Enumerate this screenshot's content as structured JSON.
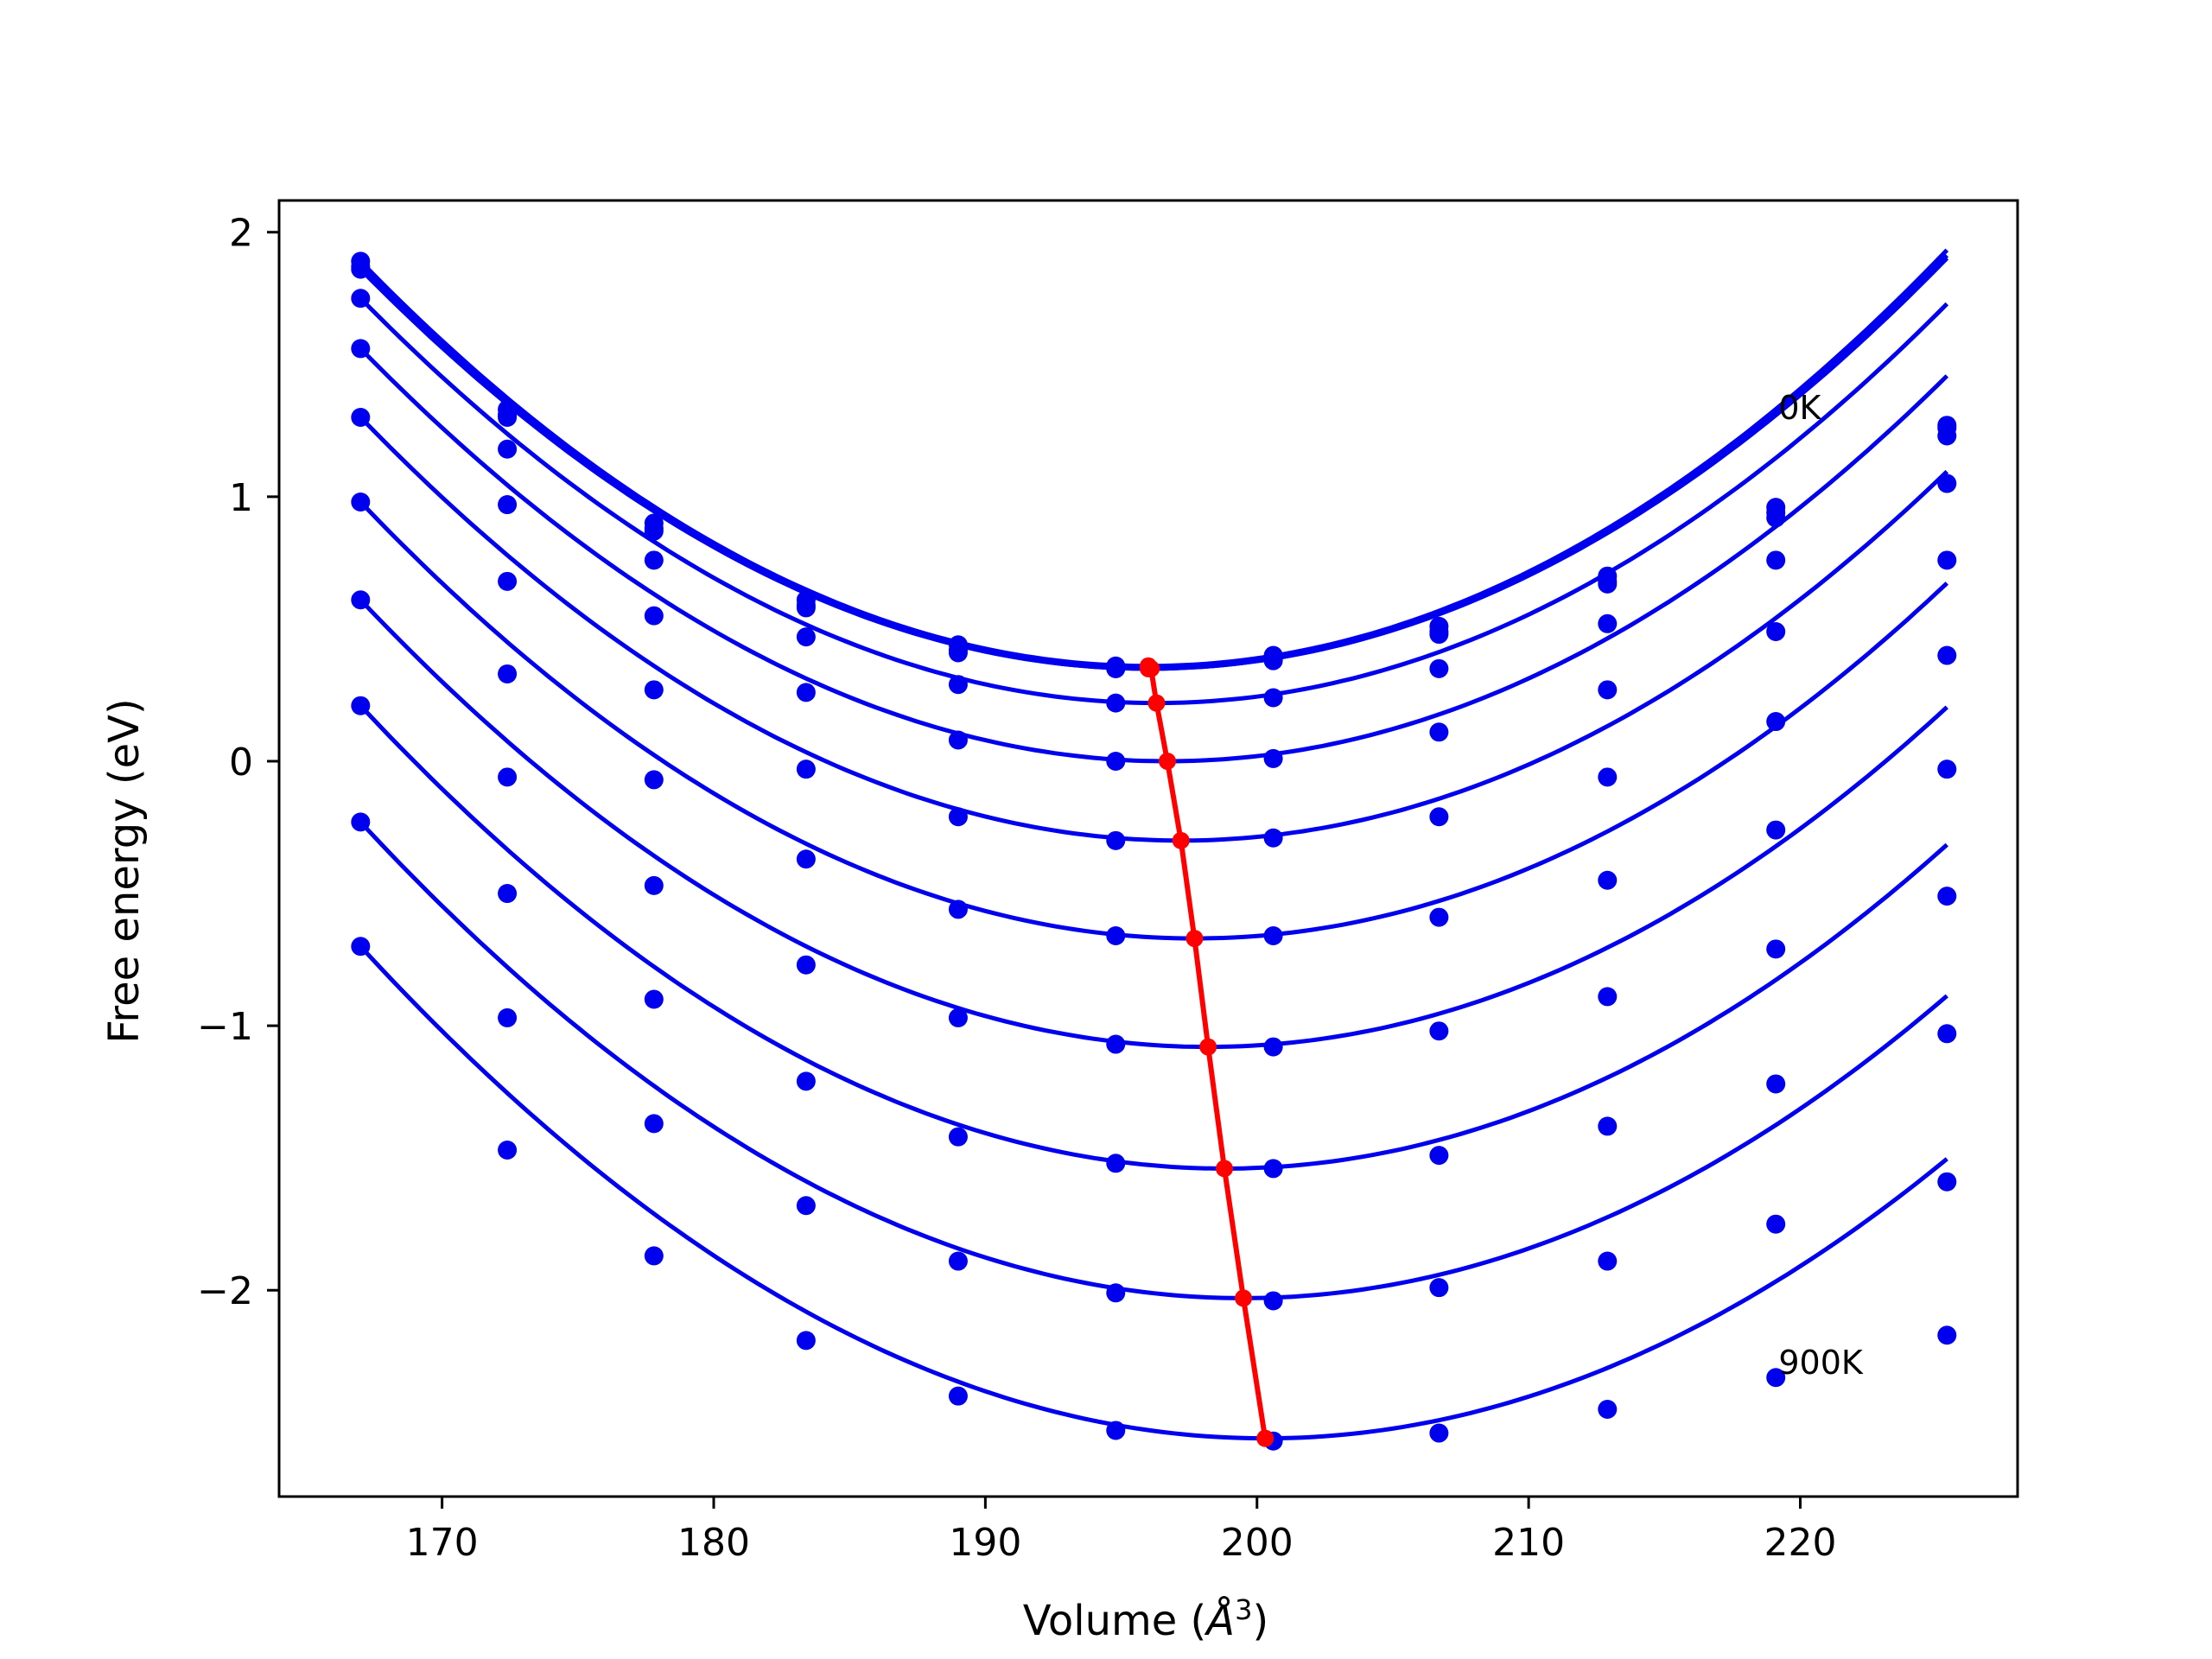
{
  "chart_data": {
    "type": "line",
    "title": "",
    "xlabel": "Volume (Å³)",
    "xlabel_main": "Volume (",
    "xlabel_unit": "Å",
    "xlabel_sup": "3",
    "xlabel_close": ")",
    "ylabel": "Free energy (eV)",
    "xlim": [
      164,
      228
    ],
    "ylim": [
      -2.78,
      2.12
    ],
    "xticks": [
      170,
      180,
      190,
      200,
      210,
      220
    ],
    "yticks": [
      -2,
      -1,
      0,
      1,
      2
    ],
    "ytick_labels": [
      "−2",
      "−1",
      "0",
      "1",
      "2"
    ],
    "grid": false,
    "colors": {
      "series": "#0000ee",
      "minimum": "#ff0000"
    },
    "annotations": [
      {
        "text": "0K",
        "x": 219.2,
        "y": 1.34
      },
      {
        "text": "900K",
        "x": 219.2,
        "y": -2.27
      }
    ],
    "x": [
      167.0,
      172.4,
      177.8,
      183.4,
      189.0,
      194.8,
      200.6,
      206.7,
      212.9,
      219.1,
      225.4
    ],
    "series": [
      {
        "points": [
          1.89,
          1.33,
          0.9,
          0.61,
          0.44,
          0.36,
          0.4,
          0.51,
          0.7,
          0.96,
          1.27
        ],
        "curve": [
          1.89,
          0.0,
          0.36,
          196.0
        ]
      },
      {
        "points": [
          1.87,
          1.31,
          0.88,
          0.59,
          0.42,
          0.35,
          0.39,
          0.49,
          0.68,
          0.94,
          1.26
        ],
        "curve": [
          1.87,
          0.0,
          0.35,
          196.0
        ]
      },
      {
        "points": [
          1.86,
          1.3,
          0.87,
          0.58,
          0.41,
          0.35,
          0.38,
          0.48,
          0.67,
          0.92,
          1.23
        ],
        "curve": [
          1.86,
          0.0,
          0.35,
          196.0
        ]
      },
      {
        "points": [
          1.75,
          1.18,
          0.76,
          0.47,
          0.29,
          0.22,
          0.24,
          0.35,
          0.52,
          0.76,
          1.05
        ],
        "curve": [
          1.75,
          0.0,
          0.22,
          196.3
        ]
      },
      {
        "points": [
          1.56,
          0.97,
          0.55,
          0.26,
          0.08,
          0.0,
          0.01,
          0.11,
          0.27,
          0.49,
          0.76
        ],
        "curve": [
          1.56,
          0.0,
          0.0,
          196.7
        ]
      },
      {
        "points": [
          1.3,
          0.68,
          0.27,
          -0.03,
          -0.21,
          -0.3,
          -0.29,
          -0.21,
          -0.06,
          0.15,
          0.4
        ],
        "curve": [
          1.3,
          0.0,
          -0.3,
          197.2
        ]
      },
      {
        "points": [
          0.98,
          0.33,
          -0.07,
          -0.37,
          -0.56,
          -0.66,
          -0.66,
          -0.59,
          -0.45,
          -0.26,
          -0.03
        ],
        "curve": [
          0.98,
          0.0,
          -0.67,
          197.7
        ]
      },
      {
        "points": [
          0.61,
          -0.06,
          -0.47,
          -0.77,
          -0.97,
          -1.07,
          -1.08,
          -1.02,
          -0.89,
          -0.71,
          -0.51
        ],
        "curve": [
          0.61,
          0.0,
          -1.08,
          198.2
        ]
      },
      {
        "points": [
          0.21,
          -0.5,
          -0.9,
          -1.21,
          -1.42,
          -1.52,
          -1.54,
          -1.49,
          -1.38,
          -1.22,
          -1.03
        ],
        "curve": [
          0.21,
          0.0,
          -1.54,
          198.8
        ]
      },
      {
        "points": [
          -0.23,
          -0.97,
          -1.37,
          -1.68,
          -1.89,
          -2.01,
          -2.04,
          -1.99,
          -1.89,
          -1.75,
          -1.59
        ],
        "curve": [
          -0.23,
          0.0,
          -2.03,
          199.5
        ]
      },
      {
        "points": [
          -0.7,
          -1.47,
          -1.87,
          -2.19,
          -2.4,
          -2.53,
          -2.57,
          -2.54,
          -2.45,
          -2.33,
          -2.17
        ],
        "curve": [
          -0.7,
          0.0,
          -2.56,
          200.3
        ]
      }
    ],
    "minimum_line": {
      "x": [
        196.0,
        196.0,
        196.1,
        196.3,
        196.7,
        197.2,
        197.7,
        198.2,
        198.8,
        199.5,
        200.3
      ],
      "y": [
        0.36,
        0.35,
        0.35,
        0.22,
        0.0,
        -0.3,
        -0.67,
        -1.08,
        -1.54,
        -2.03,
        -2.56
      ]
    }
  }
}
